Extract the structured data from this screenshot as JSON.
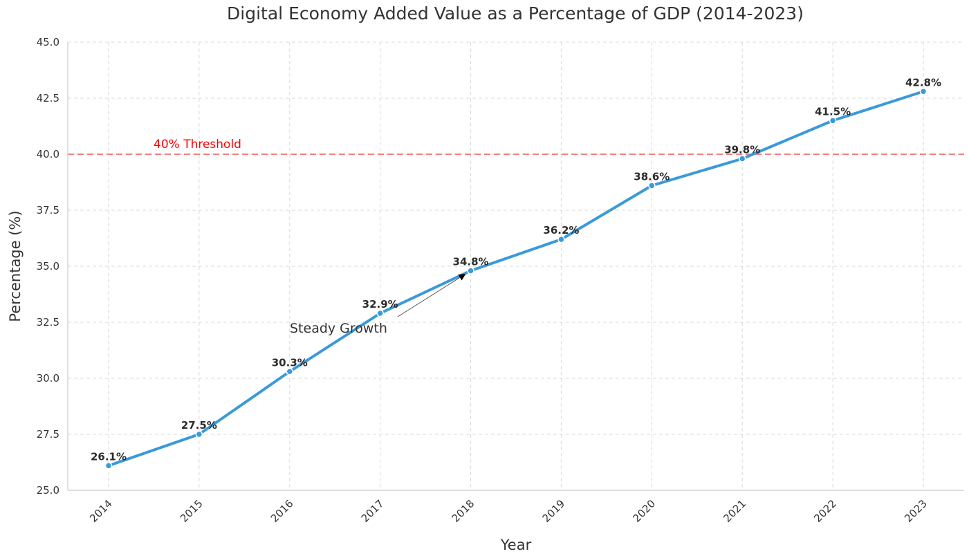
{
  "chart_data": {
    "type": "line",
    "title": "Digital Economy Added Value as a Percentage of GDP (2014-2023)",
    "xlabel": "Year",
    "ylabel": "Percentage (%)",
    "categories": [
      "2014",
      "2015",
      "2016",
      "2017",
      "2018",
      "2019",
      "2020",
      "2021",
      "2022",
      "2023"
    ],
    "series": [
      {
        "values": [
          26.1,
          27.5,
          30.3,
          32.9,
          34.8,
          36.2,
          38.6,
          39.8,
          41.5,
          42.8
        ],
        "color": "#3a9ad9"
      }
    ],
    "data_labels": [
      "26.1%",
      "27.5%",
      "30.3%",
      "32.9%",
      "34.8%",
      "36.2%",
      "38.6%",
      "39.8%",
      "41.5%",
      "42.8%"
    ],
    "ylim": [
      25.0,
      45.0
    ],
    "y_ticks": [
      "25.0",
      "27.5",
      "30.0",
      "32.5",
      "35.0",
      "37.5",
      "40.0",
      "42.5",
      "45.0"
    ],
    "grid": true,
    "reference_line": {
      "value": 40.0,
      "label": "40% Threshold",
      "color": "#f08080",
      "label_color": "#ff0000"
    },
    "annotation": {
      "text": "Steady Growth",
      "points_to": "2018"
    }
  }
}
